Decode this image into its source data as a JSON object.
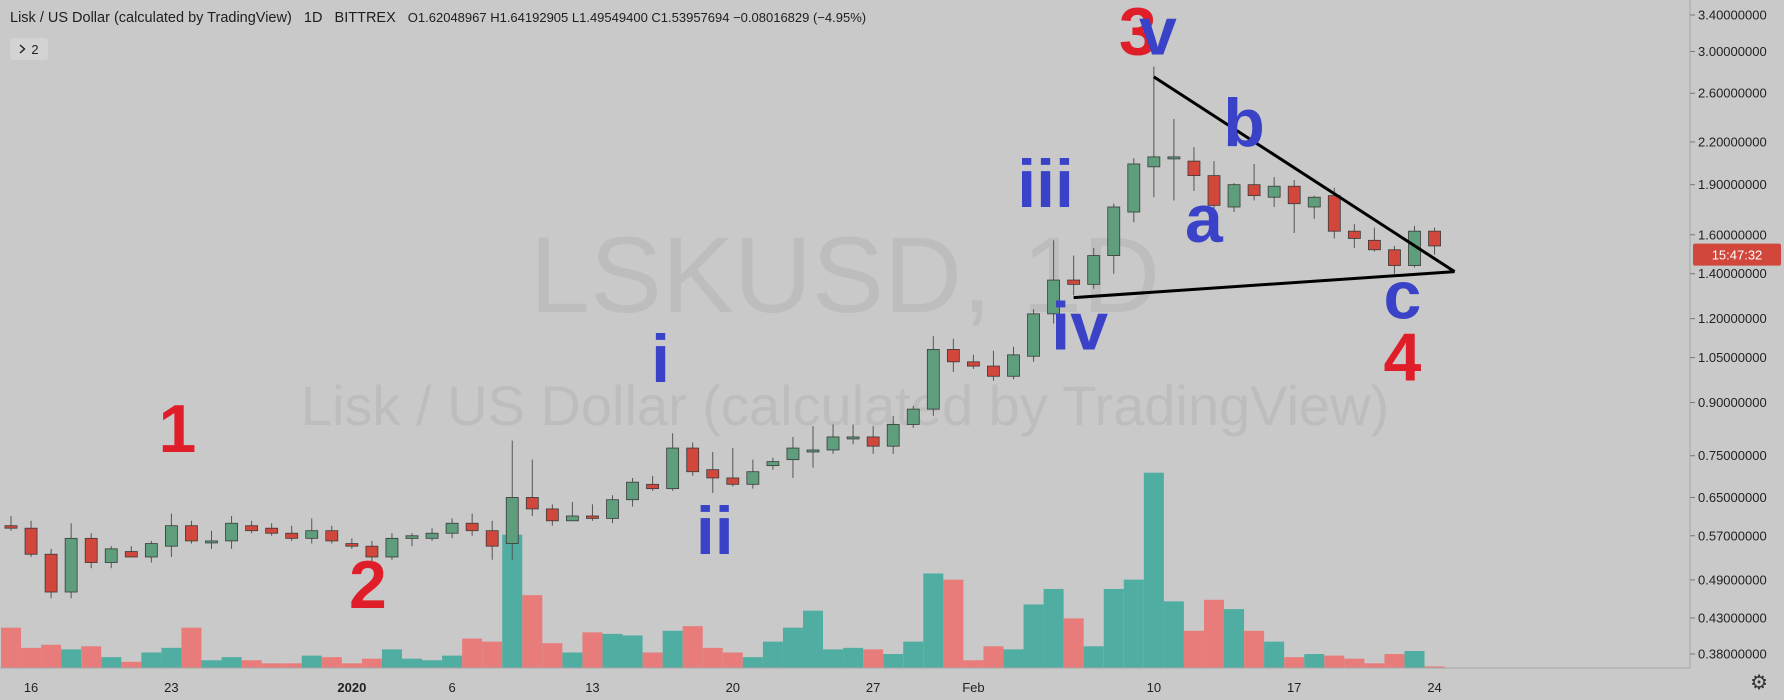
{
  "header": {
    "symbol_title": "Lisk / US Dollar (calculated by TradingView)",
    "interval": "1D",
    "exchange": "BITTREX",
    "ohlc": "O1.62048967  H1.64192905  L1.49549400  C1.53957694  −0.08016829 (−4.95%)",
    "collapse_count": "2",
    "collapse_icon": "chevron-right"
  },
  "watermark": {
    "symbol": "LSKUSD, 1D",
    "description": "Lisk / US Dollar (calculated by TradingView)"
  },
  "countdown": "15:47:32",
  "colors": {
    "up": "#5e9e7c",
    "down": "#d2473b",
    "up_volume": "#4fada2",
    "down_volume": "#e87c7a",
    "background": "#c9c9c9",
    "countdown_bg": "#d2473b",
    "wave_red": "#e01e2a",
    "wave_blue": "#3a42c8"
  },
  "chart_data": {
    "type": "candlestick",
    "scale": "log",
    "ylim": [
      0.34,
      3.6
    ],
    "y_ticks": [
      "3.40000000",
      "3.00000000",
      "2.60000000",
      "2.20000000",
      "1.90000000",
      "1.60000000",
      "1.40000000",
      "1.20000000",
      "1.05000000",
      "0.90000000",
      "0.75000000",
      "0.65000000",
      "0.57000000",
      "0.49000000",
      "0.43000000",
      "0.38000000"
    ],
    "x_ticks": [
      {
        "label": "16",
        "index": 1
      },
      {
        "label": "23",
        "index": 8
      },
      {
        "label": "2020",
        "index": 17
      },
      {
        "label": "6",
        "index": 22
      },
      {
        "label": "13",
        "index": 29
      },
      {
        "label": "20",
        "index": 36
      },
      {
        "label": "27",
        "index": 43
      },
      {
        "label": "Feb",
        "index": 48
      },
      {
        "label": "10",
        "index": 57
      },
      {
        "label": "17",
        "index": 64
      },
      {
        "label": "24",
        "index": 71
      }
    ],
    "candles": [
      {
        "o": 0.59,
        "h": 0.61,
        "l": 0.58,
        "c": 0.585,
        "v": 26
      },
      {
        "o": 0.585,
        "h": 0.6,
        "l": 0.53,
        "c": 0.535,
        "v": 13
      },
      {
        "o": 0.535,
        "h": 0.545,
        "l": 0.46,
        "c": 0.47,
        "v": 15
      },
      {
        "o": 0.47,
        "h": 0.595,
        "l": 0.46,
        "c": 0.565,
        "v": 12
      },
      {
        "o": 0.565,
        "h": 0.575,
        "l": 0.51,
        "c": 0.52,
        "v": 14
      },
      {
        "o": 0.52,
        "h": 0.55,
        "l": 0.51,
        "c": 0.545,
        "v": 7
      },
      {
        "o": 0.54,
        "h": 0.55,
        "l": 0.53,
        "c": 0.53,
        "v": 4
      },
      {
        "o": 0.53,
        "h": 0.56,
        "l": 0.52,
        "c": 0.555,
        "v": 10
      },
      {
        "o": 0.55,
        "h": 0.615,
        "l": 0.53,
        "c": 0.59,
        "v": 13
      },
      {
        "o": 0.59,
        "h": 0.6,
        "l": 0.555,
        "c": 0.56,
        "v": 26
      },
      {
        "o": 0.56,
        "h": 0.58,
        "l": 0.545,
        "c": 0.56,
        "v": 5
      },
      {
        "o": 0.56,
        "h": 0.61,
        "l": 0.545,
        "c": 0.595,
        "v": 7
      },
      {
        "o": 0.59,
        "h": 0.6,
        "l": 0.575,
        "c": 0.58,
        "v": 5
      },
      {
        "o": 0.585,
        "h": 0.595,
        "l": 0.57,
        "c": 0.575,
        "v": 3
      },
      {
        "o": 0.575,
        "h": 0.59,
        "l": 0.56,
        "c": 0.565,
        "v": 3
      },
      {
        "o": 0.565,
        "h": 0.605,
        "l": 0.555,
        "c": 0.58,
        "v": 8
      },
      {
        "o": 0.58,
        "h": 0.59,
        "l": 0.555,
        "c": 0.56,
        "v": 7
      },
      {
        "o": 0.555,
        "h": 0.565,
        "l": 0.545,
        "c": 0.55,
        "v": 3
      },
      {
        "o": 0.55,
        "h": 0.56,
        "l": 0.52,
        "c": 0.53,
        "v": 6
      },
      {
        "o": 0.53,
        "h": 0.575,
        "l": 0.525,
        "c": 0.565,
        "v": 12
      },
      {
        "o": 0.565,
        "h": 0.575,
        "l": 0.55,
        "c": 0.57,
        "v": 6
      },
      {
        "o": 0.565,
        "h": 0.585,
        "l": 0.56,
        "c": 0.575,
        "v": 5
      },
      {
        "o": 0.575,
        "h": 0.605,
        "l": 0.565,
        "c": 0.595,
        "v": 8
      },
      {
        "o": 0.595,
        "h": 0.615,
        "l": 0.57,
        "c": 0.58,
        "v": 19
      },
      {
        "o": 0.58,
        "h": 0.6,
        "l": 0.525,
        "c": 0.55,
        "v": 17
      },
      {
        "o": 0.555,
        "h": 0.79,
        "l": 0.525,
        "c": 0.65,
        "v": 86
      },
      {
        "o": 0.65,
        "h": 0.74,
        "l": 0.61,
        "c": 0.625,
        "v": 47
      },
      {
        "o": 0.625,
        "h": 0.635,
        "l": 0.59,
        "c": 0.6,
        "v": 16
      },
      {
        "o": 0.6,
        "h": 0.64,
        "l": 0.6,
        "c": 0.61,
        "v": 10
      },
      {
        "o": 0.61,
        "h": 0.635,
        "l": 0.6,
        "c": 0.605,
        "v": 23
      },
      {
        "o": 0.605,
        "h": 0.655,
        "l": 0.595,
        "c": 0.645,
        "v": 22
      },
      {
        "o": 0.645,
        "h": 0.695,
        "l": 0.63,
        "c": 0.685,
        "v": 21
      },
      {
        "o": 0.68,
        "h": 0.7,
        "l": 0.665,
        "c": 0.67,
        "v": 10
      },
      {
        "o": 0.67,
        "h": 0.81,
        "l": 0.665,
        "c": 0.77,
        "v": 24
      },
      {
        "o": 0.77,
        "h": 0.785,
        "l": 0.7,
        "c": 0.71,
        "v": 27
      },
      {
        "o": 0.715,
        "h": 0.76,
        "l": 0.66,
        "c": 0.695,
        "v": 13
      },
      {
        "o": 0.695,
        "h": 0.77,
        "l": 0.675,
        "c": 0.68,
        "v": 10
      },
      {
        "o": 0.68,
        "h": 0.74,
        "l": 0.67,
        "c": 0.71,
        "v": 7
      },
      {
        "o": 0.725,
        "h": 0.745,
        "l": 0.715,
        "c": 0.735,
        "v": 17
      },
      {
        "o": 0.74,
        "h": 0.8,
        "l": 0.695,
        "c": 0.77,
        "v": 26
      },
      {
        "o": 0.765,
        "h": 0.83,
        "l": 0.72,
        "c": 0.765,
        "v": 37
      },
      {
        "o": 0.765,
        "h": 0.835,
        "l": 0.755,
        "c": 0.8,
        "v": 12
      },
      {
        "o": 0.795,
        "h": 0.835,
        "l": 0.78,
        "c": 0.8,
        "v": 13
      },
      {
        "o": 0.8,
        "h": 0.83,
        "l": 0.755,
        "c": 0.775,
        "v": 12
      },
      {
        "o": 0.775,
        "h": 0.86,
        "l": 0.755,
        "c": 0.835,
        "v": 9
      },
      {
        "o": 0.835,
        "h": 0.89,
        "l": 0.825,
        "c": 0.88,
        "v": 17
      },
      {
        "o": 0.88,
        "h": 1.13,
        "l": 0.86,
        "c": 1.08,
        "v": 61
      },
      {
        "o": 1.08,
        "h": 1.12,
        "l": 1.0,
        "c": 1.035,
        "v": 57
      },
      {
        "o": 1.035,
        "h": 1.06,
        "l": 1.01,
        "c": 1.02,
        "v": 5
      },
      {
        "o": 1.02,
        "h": 1.075,
        "l": 0.97,
        "c": 0.985,
        "v": 14
      },
      {
        "o": 0.985,
        "h": 1.09,
        "l": 0.975,
        "c": 1.06,
        "v": 12
      },
      {
        "o": 1.055,
        "h": 1.24,
        "l": 1.035,
        "c": 1.22,
        "v": 41
      },
      {
        "o": 1.22,
        "h": 1.57,
        "l": 1.18,
        "c": 1.37,
        "v": 51
      },
      {
        "o": 1.37,
        "h": 1.49,
        "l": 1.3,
        "c": 1.35,
        "v": 32
      },
      {
        "o": 1.35,
        "h": 1.53,
        "l": 1.33,
        "c": 1.49,
        "v": 14
      },
      {
        "o": 1.49,
        "h": 1.78,
        "l": 1.4,
        "c": 1.76,
        "v": 51
      },
      {
        "o": 1.73,
        "h": 2.08,
        "l": 1.67,
        "c": 2.04,
        "v": 57
      },
      {
        "o": 2.02,
        "h": 2.85,
        "l": 1.82,
        "c": 2.09,
        "v": 126
      },
      {
        "o": 2.08,
        "h": 2.38,
        "l": 1.8,
        "c": 2.09,
        "v": 43
      },
      {
        "o": 2.06,
        "h": 2.16,
        "l": 1.86,
        "c": 1.96,
        "v": 24
      },
      {
        "o": 1.96,
        "h": 2.06,
        "l": 1.72,
        "c": 1.77,
        "v": 44
      },
      {
        "o": 1.76,
        "h": 1.91,
        "l": 1.73,
        "c": 1.9,
        "v": 38
      },
      {
        "o": 1.9,
        "h": 2.04,
        "l": 1.8,
        "c": 1.83,
        "v": 24
      },
      {
        "o": 1.82,
        "h": 1.95,
        "l": 1.76,
        "c": 1.89,
        "v": 17
      },
      {
        "o": 1.89,
        "h": 1.93,
        "l": 1.61,
        "c": 1.78,
        "v": 7
      },
      {
        "o": 1.76,
        "h": 1.83,
        "l": 1.69,
        "c": 1.82,
        "v": 9
      },
      {
        "o": 1.83,
        "h": 1.88,
        "l": 1.58,
        "c": 1.62,
        "v": 8
      },
      {
        "o": 1.62,
        "h": 1.66,
        "l": 1.53,
        "c": 1.58,
        "v": 6
      },
      {
        "o": 1.57,
        "h": 1.64,
        "l": 1.51,
        "c": 1.52,
        "v": 3
      },
      {
        "o": 1.52,
        "h": 1.54,
        "l": 1.4,
        "c": 1.44,
        "v": 9
      },
      {
        "o": 1.44,
        "h": 1.65,
        "l": 1.43,
        "c": 1.62,
        "v": 11
      },
      {
        "o": 1.62,
        "h": 1.64,
        "l": 1.495,
        "c": 1.54,
        "v": 1
      }
    ],
    "trendlines": [
      {
        "from": {
          "index": 57,
          "price": 2.75
        },
        "to": {
          "index": 72,
          "price": 1.41
        }
      },
      {
        "from": {
          "index": 53,
          "price": 1.29
        },
        "to": {
          "index": 72,
          "price": 1.41
        }
      }
    ],
    "wave_labels": [
      {
        "text": "1",
        "color": "red",
        "index": 8.3,
        "price": 0.76
      },
      {
        "text": "2",
        "color": "red",
        "index": 17.8,
        "price": 0.445
      },
      {
        "text": "3",
        "color": "red",
        "index": 56.2,
        "price": 2.97
      },
      {
        "text": "v",
        "color": "blue",
        "index": 57.2,
        "price": 2.97
      },
      {
        "text": "i",
        "color": "blue",
        "index": 32.4,
        "price": 0.965
      },
      {
        "text": "ii",
        "color": "blue",
        "index": 35.1,
        "price": 0.535
      },
      {
        "text": "iii",
        "color": "blue",
        "index": 51.6,
        "price": 1.76
      },
      {
        "text": "iv",
        "color": "blue",
        "index": 53.3,
        "price": 1.08
      },
      {
        "text": "b",
        "color": "blue",
        "index": 61.5,
        "price": 2.17
      },
      {
        "text": "a",
        "color": "blue",
        "index": 59.5,
        "price": 1.56
      },
      {
        "text": "c",
        "color": "blue",
        "index": 69.4,
        "price": 1.2
      },
      {
        "text": "4",
        "color": "red",
        "index": 69.4,
        "price": 0.97
      }
    ]
  }
}
